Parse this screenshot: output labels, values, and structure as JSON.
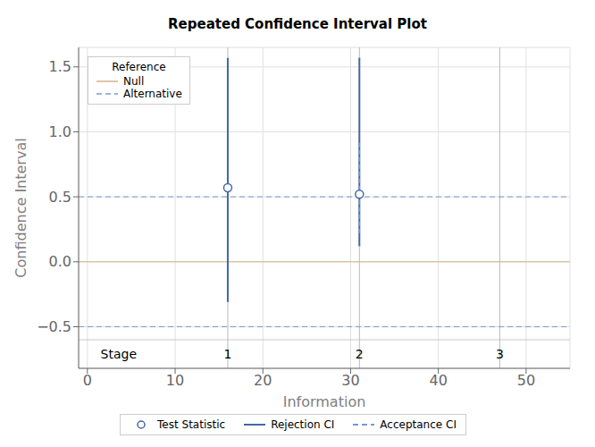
{
  "chart_data": {
    "type": "interval",
    "title": "Repeated Confidence Interval Plot",
    "x_label": "Information",
    "y_label": "Confidence Interval",
    "xlim": [
      -1,
      55
    ],
    "ylim": [
      -0.82,
      1.65
    ],
    "xticks": [
      0,
      10,
      20,
      30,
      40,
      50
    ],
    "yticks": [
      {
        "value": -0.5,
        "label": "−0.5"
      },
      {
        "value": 0,
        "label": "0.0"
      },
      0.5,
      {
        "value": 1,
        "label": "1.0"
      },
      1.5
    ],
    "grid": true,
    "legend": "bottom",
    "reference": {
      "title": "Reference",
      "legend": "upper left",
      "lines": [
        {
          "name": "Null",
          "values": [
            0
          ],
          "color": "#d2b48c",
          "line_style": "solid"
        },
        {
          "name": "Alternative",
          "values": [
            0.5,
            -0.5
          ],
          "color": "#7799cc",
          "line_style": "dashed"
        }
      ]
    },
    "stages": {
      "label": "Stage",
      "label_x": 1.5,
      "label_y": -0.71,
      "x": [
        16,
        31,
        47
      ],
      "labels": [
        "1",
        "2",
        "3"
      ],
      "color": "#bbbbbb",
      "boundary_y": -0.6
    },
    "series": [
      {
        "name": "Test Statistic",
        "type": "scatter",
        "marker": "open_circle",
        "color": "#4466aa",
        "x": [
          16,
          31
        ],
        "values": [
          0.57,
          0.52
        ]
      },
      {
        "name": "Rejection CI",
        "type": "interval",
        "line_style": "solid",
        "color": "#4466aa",
        "x": [
          16,
          31
        ],
        "low": [
          -0.31,
          0.12
        ],
        "high": [
          1.57,
          1.57
        ]
      },
      {
        "name": "Acceptance CI",
        "type": "interval",
        "line_style": "dashed",
        "color": "#7799cc",
        "x": [
          31
        ],
        "low": [
          0.22
        ],
        "high": [
          0.93
        ]
      }
    ]
  }
}
